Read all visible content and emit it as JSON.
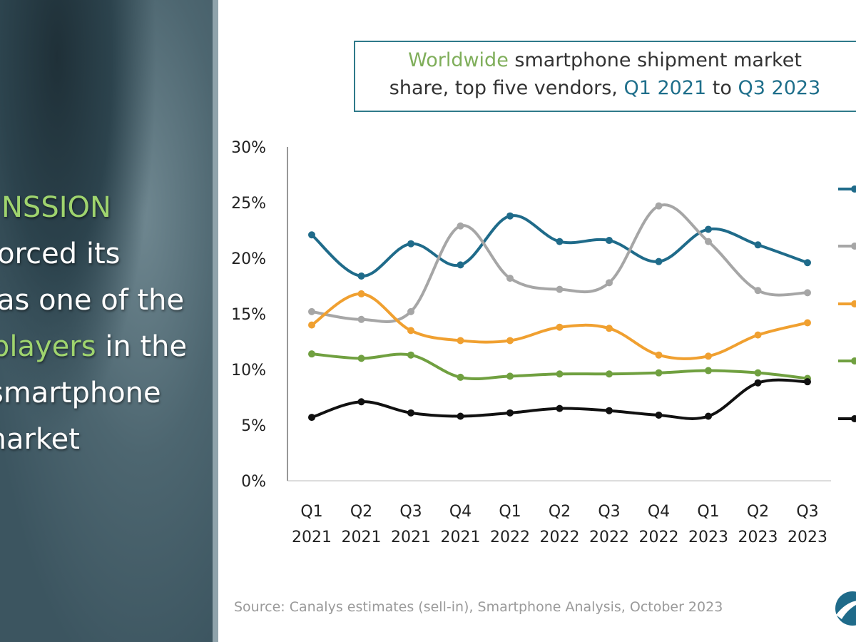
{
  "left_panel": {
    "lines": [
      "NSSION",
      "forced its",
      "as one of the",
      "players",
      "in the",
      "smartphone",
      "market"
    ]
  },
  "title": {
    "part1": "Worldwide",
    "part2": " smartphone shipment market",
    "part3": "share, top five vendors, ",
    "part4": "Q1 2021",
    "part5": " to ",
    "part6": "Q3 2023"
  },
  "source": "Source: Canalys estimates (sell-in), Smartphone Analysis, October 2023",
  "chart_data": {
    "type": "line",
    "title": "Worldwide smartphone shipment market share, top five vendors, Q1 2021 to Q3 2023",
    "categories": [
      [
        "Q1",
        "2021"
      ],
      [
        "Q2",
        "2021"
      ],
      [
        "Q3",
        "2021"
      ],
      [
        "Q4",
        "2021"
      ],
      [
        "Q1",
        "2022"
      ],
      [
        "Q2",
        "2022"
      ],
      [
        "Q3",
        "2022"
      ],
      [
        "Q4",
        "2022"
      ],
      [
        "Q1",
        "2023"
      ],
      [
        "Q2",
        "2023"
      ],
      [
        "Q3",
        "2023"
      ]
    ],
    "yticks": [
      "0%",
      "5%",
      "10%",
      "15%",
      "20%",
      "25%",
      "30%"
    ],
    "ylim": [
      0,
      30
    ],
    "grid": false,
    "legend": "right",
    "series": [
      {
        "color": "#1f6b8a",
        "values": [
          22.1,
          18.4,
          21.3,
          19.4,
          23.8,
          21.5,
          21.6,
          19.7,
          22.6,
          21.2,
          19.6
        ]
      },
      {
        "color": "#a6a6a6",
        "values": [
          15.2,
          14.5,
          15.2,
          22.9,
          18.2,
          17.2,
          17.8,
          24.7,
          21.5,
          17.1,
          16.9
        ]
      },
      {
        "color": "#f0a030",
        "values": [
          14.0,
          16.8,
          13.5,
          12.6,
          12.6,
          13.8,
          13.7,
          11.3,
          11.2,
          13.1,
          14.2
        ]
      },
      {
        "color": "#70a040",
        "values": [
          11.4,
          11.0,
          11.3,
          9.3,
          9.4,
          9.6,
          9.6,
          9.7,
          9.9,
          9.7,
          9.2
        ]
      },
      {
        "color": "#111111",
        "values": [
          5.7,
          7.1,
          6.1,
          5.8,
          6.1,
          6.5,
          6.3,
          5.9,
          5.8,
          8.8,
          8.9
        ]
      }
    ]
  }
}
